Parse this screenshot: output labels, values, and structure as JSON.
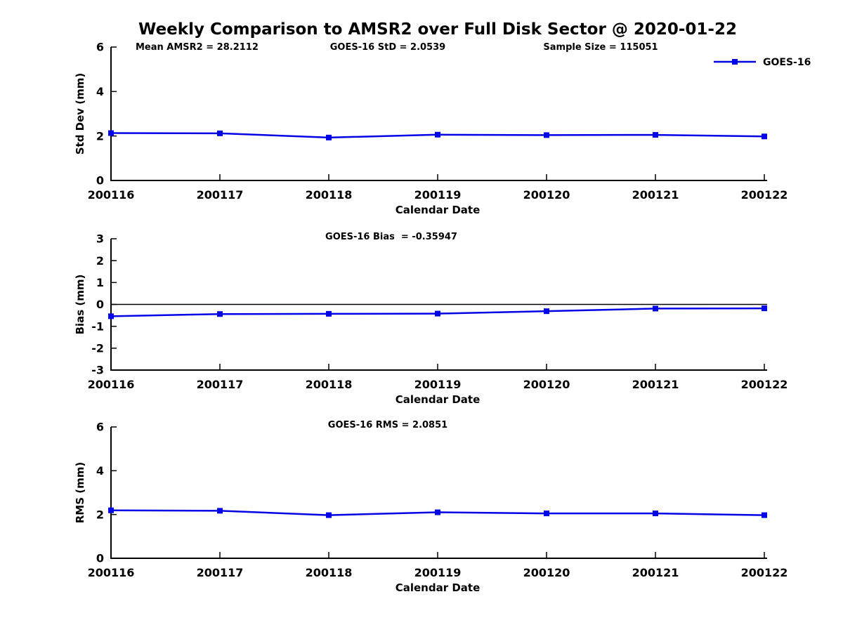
{
  "title": "Weekly Comparison to AMSR2 over Full Disk Sector @ 2020-01-22",
  "colors": {
    "series": "#0303e8",
    "axis": "#000000",
    "text": "#000000",
    "zero_line": "#000000",
    "background": "#ffffff"
  },
  "legend": {
    "label": "GOES-16",
    "position": "upper-right"
  },
  "chart_data": [
    {
      "type": "line",
      "id": "std-dev",
      "ylabel": "Std Dev (mm)",
      "xlabel": "Calendar Date",
      "ylim": [
        0,
        6
      ],
      "yticks": [
        0,
        2,
        4,
        6
      ],
      "grid": false,
      "marker": "square",
      "categories": [
        "200116",
        "200117",
        "200118",
        "200119",
        "200120",
        "200121",
        "200122"
      ],
      "series": [
        {
          "name": "GOES-16",
          "values": [
            2.13,
            2.12,
            1.93,
            2.06,
            2.04,
            2.05,
            1.98
          ]
        }
      ],
      "annotations": [
        {
          "text": "Mean AMSR2 = 28.2112"
        },
        {
          "text": "GOES-16 StD = 2.0539"
        },
        {
          "text": "Sample Size = 115051"
        }
      ],
      "legend_entries": [
        "GOES-16"
      ]
    },
    {
      "type": "line",
      "id": "bias",
      "ylabel": "Bias (mm)",
      "xlabel": "Calendar Date",
      "ylim": [
        -3,
        3
      ],
      "yticks": [
        3,
        2,
        1,
        0,
        -1,
        -2,
        -3
      ],
      "zero_line": true,
      "grid": false,
      "marker": "square",
      "categories": [
        "200116",
        "200117",
        "200118",
        "200119",
        "200120",
        "200121",
        "200122"
      ],
      "series": [
        {
          "name": "GOES-16",
          "values": [
            -0.54,
            -0.44,
            -0.43,
            -0.42,
            -0.31,
            -0.19,
            -0.18
          ]
        }
      ],
      "annotations": [
        {
          "text": "GOES-16 Bias  = -0.35947"
        }
      ],
      "legend_entries": []
    },
    {
      "type": "line",
      "id": "rms",
      "ylabel": "RMS (mm)",
      "xlabel": "Calendar Date",
      "ylim": [
        0,
        6
      ],
      "yticks": [
        0,
        2,
        4,
        6
      ],
      "grid": false,
      "marker": "square",
      "categories": [
        "200116",
        "200117",
        "200118",
        "200119",
        "200120",
        "200121",
        "200122"
      ],
      "series": [
        {
          "name": "GOES-16",
          "values": [
            2.19,
            2.17,
            1.97,
            2.1,
            2.05,
            2.05,
            1.97
          ]
        }
      ],
      "annotations": [
        {
          "text": "GOES-16 RMS = 2.0851"
        }
      ],
      "legend_entries": []
    }
  ]
}
